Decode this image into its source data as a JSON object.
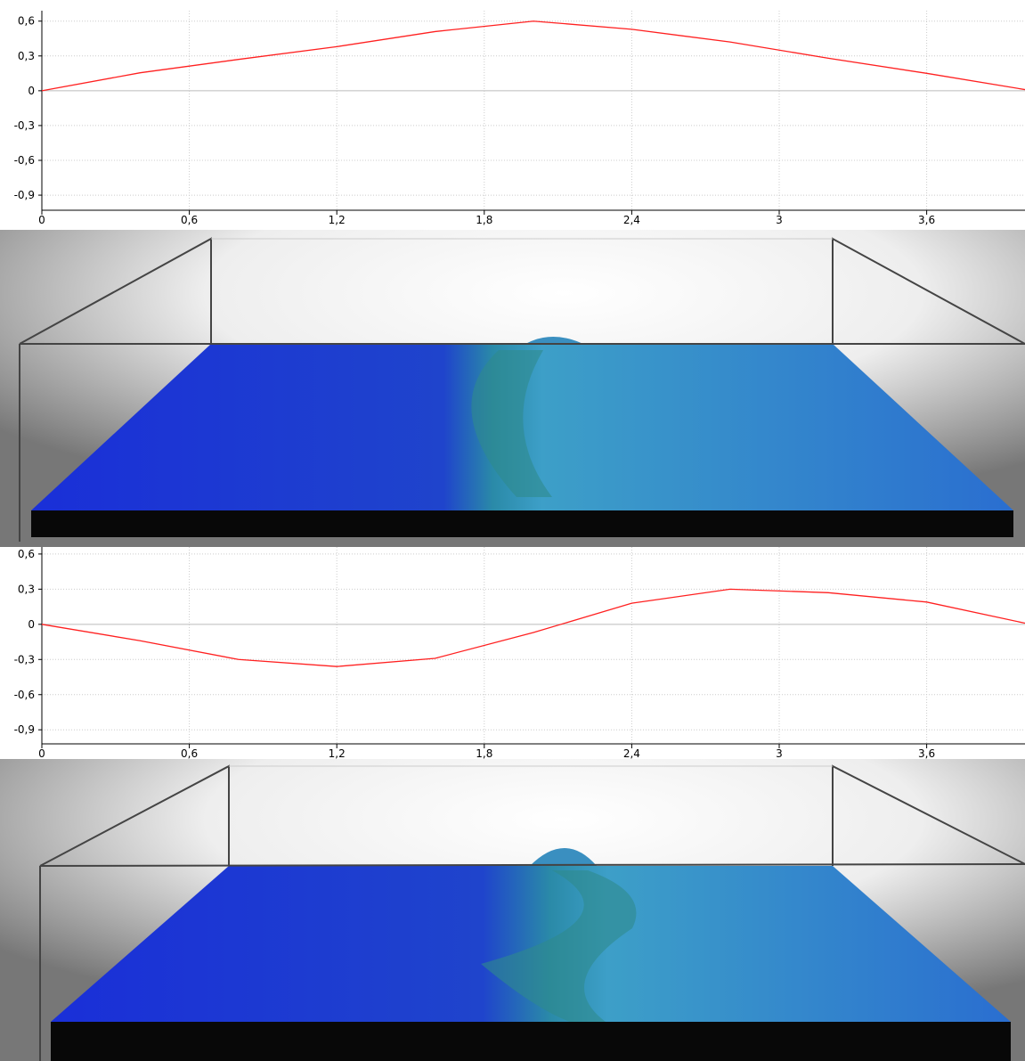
{
  "chart_data": [
    {
      "type": "line",
      "x": [
        0,
        0.4,
        0.8,
        1.2,
        1.6,
        2.0,
        2.4,
        2.8,
        3.2,
        3.6,
        4.0
      ],
      "values": [
        0,
        0.155,
        0.27,
        0.38,
        0.51,
        0.6,
        0.53,
        0.42,
        0.28,
        0.15,
        0.01
      ],
      "color": "#ff2020",
      "xlim": [
        0,
        4.0
      ],
      "ylim": [
        -1.03,
        0.69
      ],
      "xticks": [
        0,
        {
          "value": 0.6,
          "label": "0,6"
        },
        {
          "value": 1.2,
          "label": "1,2"
        },
        {
          "value": 1.8,
          "label": "1,8"
        },
        {
          "value": 2.4,
          "label": "2,4"
        },
        3,
        {
          "value": 3.6,
          "label": "3,6"
        }
      ],
      "yticks": [
        {
          "value": -0.9,
          "label": "-0,9"
        },
        {
          "value": -0.6,
          "label": "-0,6"
        },
        {
          "value": -0.3,
          "label": "-0,3"
        },
        0,
        {
          "value": 0.3,
          "label": "0,3"
        },
        {
          "value": 0.6,
          "label": "0,6"
        }
      ],
      "grid": true
    },
    {
      "type": "line",
      "x": [
        0,
        0.4,
        0.8,
        1.2,
        1.6,
        2.0,
        2.4,
        2.8,
        3.2,
        3.6,
        4.0
      ],
      "values": [
        0,
        -0.14,
        -0.3,
        -0.36,
        -0.29,
        -0.07,
        0.18,
        0.3,
        0.27,
        0.19,
        0.01
      ],
      "color": "#ff2020",
      "xlim": [
        0,
        4.0
      ],
      "ylim": [
        -1.02,
        0.66
      ],
      "xticks": [
        0,
        {
          "value": 0.6,
          "label": "0,6"
        },
        {
          "value": 1.2,
          "label": "1,2"
        },
        {
          "value": 1.8,
          "label": "1,8"
        },
        {
          "value": 2.4,
          "label": "2,4"
        },
        3,
        {
          "value": 3.6,
          "label": "3,6"
        }
      ],
      "yticks": [
        {
          "value": -0.9,
          "label": "-0,9"
        },
        {
          "value": -0.6,
          "label": "-0,6"
        },
        {
          "value": -0.3,
          "label": "-0,3"
        },
        0,
        {
          "value": 0.3,
          "label": "0,3"
        },
        {
          "value": 0.6,
          "label": "0,6"
        }
      ],
      "grid": true
    }
  ]
}
